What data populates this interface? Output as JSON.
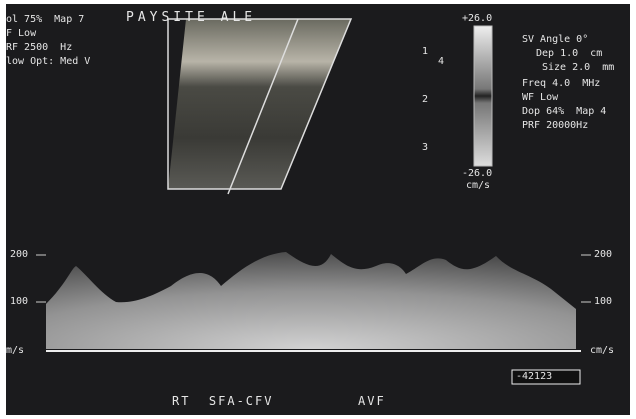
{
  "left_settings": [
    "ol 75%  Map 7",
    "F Low",
    "RF 2500  Hz",
    "low Opt: Med V"
  ],
  "overlay_label": "PAYSITE ALE",
  "depth_marks": [
    "1",
    "2",
    "3"
  ],
  "depth_side_mark": "4",
  "color_scale": {
    "top": "+26.0",
    "bottom": "-26.0",
    "unit": "cm/s"
  },
  "right_settings": [
    "SV Angle 0°",
    "Dep 1.0  cm",
    "Size 2.0  mm",
    "Freq 4.0  MHz",
    "WF Low",
    "Dop 64%  Map 4",
    "PRF 20000Hz"
  ],
  "spectral_left": {
    "ticks": [
      "200",
      "100"
    ],
    "unit": "m/s"
  },
  "spectral_right": {
    "ticks": [
      "200",
      "100"
    ],
    "unit": "cm/s"
  },
  "frame_id": "-42123",
  "footer": {
    "vessel": "RT  SFA-CFV",
    "tag": "AVF"
  }
}
